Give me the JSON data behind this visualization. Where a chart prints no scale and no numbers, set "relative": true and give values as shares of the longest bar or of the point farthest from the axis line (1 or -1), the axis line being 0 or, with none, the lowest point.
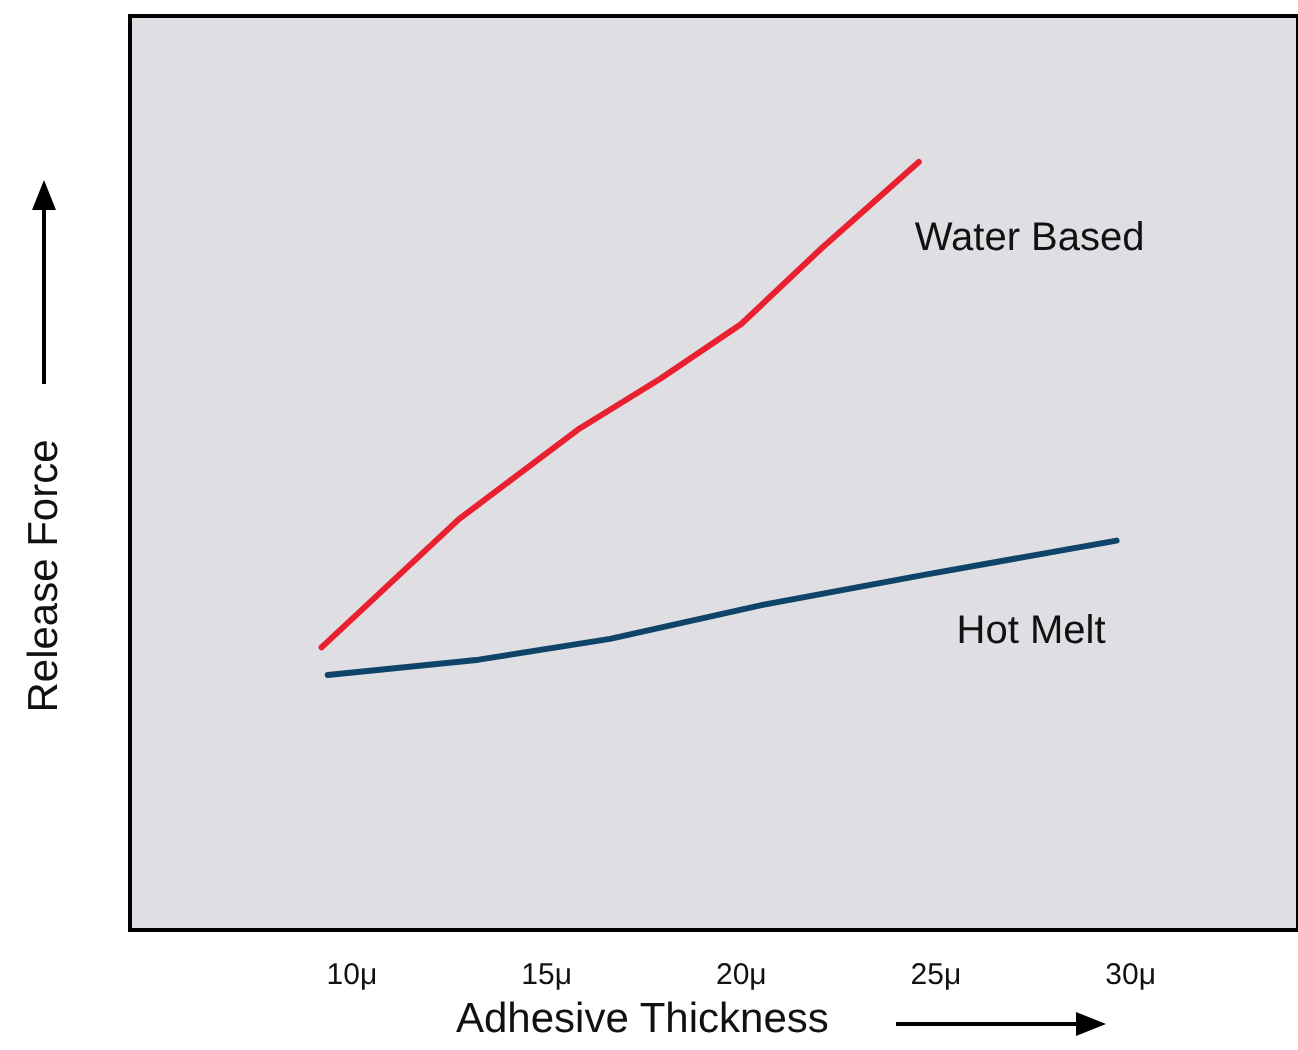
{
  "chart_data": {
    "type": "line",
    "relative": true,
    "xlabel": "Adhesive Thickness",
    "ylabel": "Release Force",
    "xlim": [
      4.3,
      34.3
    ],
    "xticks": [
      {
        "value": 10,
        "label": "10μ"
      },
      {
        "value": 15,
        "label": "15μ"
      },
      {
        "value": 20,
        "label": "20μ"
      },
      {
        "value": 25,
        "label": "25μ"
      },
      {
        "value": 30,
        "label": "30μ"
      }
    ],
    "grid": false,
    "legend": false,
    "marker": "none",
    "line_style": "solid",
    "series": [
      {
        "name": "Water Based",
        "color": "#e8202f",
        "x": [
          9.22,
          12.75,
          15.85,
          17.93,
          20.0,
          22.07,
          24.56
        ],
        "values": [
          0.368,
          0.535,
          0.653,
          0.718,
          0.789,
          0.888,
          1
        ]
      },
      {
        "name": "Hot Melt",
        "color": "#0d4468",
        "x": [
          9.38,
          13.26,
          16.63,
          20.52,
          24.66,
          29.64
        ],
        "values": [
          0.332,
          0.352,
          0.379,
          0.423,
          0.462,
          0.507
        ]
      }
    ]
  }
}
